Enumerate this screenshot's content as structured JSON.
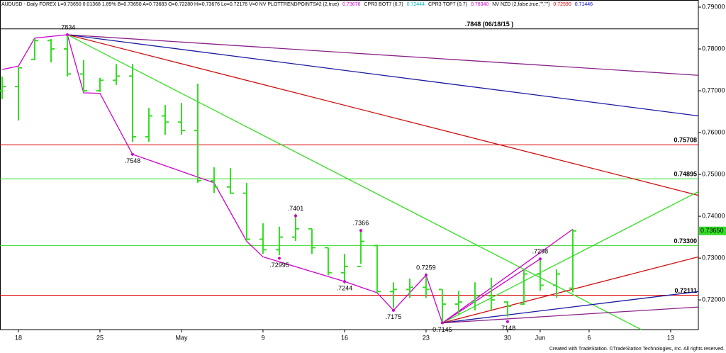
{
  "chart_data": {
    "type": "ohlc",
    "header": [
      {
        "text": "AUDUSD - Daily  FOREX  L=0.73650  0.01368  1.89%  B=0.73650  A=0.73683  O=0.72280  Hi=0.73676  Lo=0.72176  V=0  NV  PLOTTRENDPOINTS#2 (2,true)",
        "color": "#000000"
      },
      {
        "text": "0.73676",
        "color": "#cc00cc"
      },
      {
        "text": "CPR3 BOT7 (0,7)",
        "color": "#000000"
      },
      {
        "text": "0.72444",
        "color": "#00b0c0"
      },
      {
        "text": "CPR3 TOP7 (0,7)",
        "color": "#000000"
      },
      {
        "text": "0.78340",
        "color": "#cc00cc"
      },
      {
        "text": "NV NZD (2,false,true,\"\",\"\")",
        "color": "#000000"
      },
      {
        "text": "0.72590",
        "color": "#dd0000"
      },
      {
        "text": "0.71446",
        "color": "#0000cc"
      }
    ],
    "categories": [
      null,
      "18",
      null,
      null,
      null,
      null,
      "25",
      null,
      null,
      null,
      null,
      "May",
      null,
      null,
      null,
      null,
      "9",
      null,
      null,
      null,
      null,
      "16",
      null,
      null,
      null,
      null,
      "23",
      null,
      null,
      null,
      null,
      "30",
      null,
      "Jun",
      null,
      null,
      "6",
      null,
      null,
      null,
      null,
      "13",
      null
    ],
    "open": [
      0.77,
      0.771,
      0.7775,
      0.782,
      0.78,
      0.774,
      0.77,
      0.7725,
      0.7735,
      0.759,
      0.764,
      0.7625,
      0.7605,
      0.7485,
      0.747,
      0.7455,
      0.7345,
      0.732,
      0.735,
      0.737,
      0.7325,
      0.7265,
      0.728,
      0.733,
      0.722,
      0.7225,
      0.723,
      0.7225,
      0.719,
      0.7195,
      0.721,
      0.7195,
      0.719,
      0.7262,
      0.7235,
      0.7228,
      null,
      null,
      null,
      null,
      null,
      null,
      null
    ],
    "high": [
      0.7734,
      0.7756,
      0.7824,
      0.7824,
      0.7834,
      0.7773,
      0.7731,
      0.7764,
      0.7764,
      0.7659,
      0.7666,
      0.7671,
      0.7717,
      0.7517,
      0.7515,
      0.748,
      0.7383,
      0.7375,
      0.7406,
      0.737,
      0.7325,
      0.731,
      0.7366,
      0.7332,
      0.7242,
      0.7251,
      0.7264,
      0.7225,
      0.7222,
      0.7242,
      0.7253,
      0.7197,
      0.7273,
      0.7298,
      0.7273,
      0.7368,
      null,
      null,
      null,
      null,
      null,
      null,
      null
    ],
    "low": [
      0.768,
      0.7629,
      0.7773,
      0.7768,
      0.7734,
      0.7697,
      0.7697,
      0.7714,
      0.7578,
      0.7578,
      0.7595,
      0.7595,
      0.748,
      0.7456,
      0.7454,
      0.7341,
      0.731,
      0.7307,
      0.7341,
      0.731,
      0.7259,
      0.7239,
      0.7286,
      0.7217,
      0.718,
      0.7205,
      0.7205,
      0.7146,
      0.7163,
      0.7175,
      0.7176,
      0.716,
      0.7188,
      0.7222,
      0.7205,
      0.7218,
      null,
      null,
      null,
      null,
      null,
      null,
      null
    ],
    "close": [
      0.771,
      0.7755,
      0.782,
      0.78,
      0.774,
      0.77,
      0.7725,
      0.7735,
      0.759,
      0.764,
      0.7625,
      0.7605,
      0.7485,
      0.747,
      0.7455,
      0.7345,
      0.732,
      0.735,
      0.737,
      0.7325,
      0.7265,
      0.728,
      0.734,
      0.722,
      0.7225,
      0.723,
      0.7225,
      0.719,
      0.7195,
      0.721,
      0.72,
      0.7185,
      0.7262,
      0.7235,
      0.7262,
      0.7365,
      null,
      null,
      null,
      null,
      null,
      null,
      null
    ],
    "color": "#33dd22",
    "xlim": [
      -0.13,
      42.7
    ],
    "ylim": [
      0.7129,
      0.7917
    ],
    "yticks": [
      {
        "value": 0.79,
        "label": "0.79000"
      },
      {
        "value": 0.78,
        "label": "0.78000"
      },
      {
        "value": 0.77,
        "label": "0.77000"
      },
      {
        "value": 0.76,
        "label": "0.76000"
      },
      {
        "value": 0.75,
        "label": "0.75000"
      },
      {
        "value": 0.74,
        "label": "0.74000"
      },
      {
        "value": 0.73,
        "label": "0.73000"
      },
      {
        "value": 0.72,
        "label": "0.72000"
      }
    ],
    "last": {
      "value": 0.7365,
      "label": "0.73650",
      "color": "#33dd22"
    },
    "horizontal_lines": [
      {
        "value": 0.7848,
        "label": ".7848 (06/18/15 )",
        "color": "#000000"
      },
      {
        "value": 0.75708,
        "label": "0.75708",
        "color": "#dd0000"
      },
      {
        "value": 0.74895,
        "label": "0.74895",
        "color": "#33dd22"
      },
      {
        "value": 0.733,
        "label": "0.73300",
        "color": "#33dd22"
      },
      {
        "value": 0.72111,
        "label": "0.72111",
        "color": "#dd0000"
      }
    ],
    "trend_lines": [
      {
        "from": [
          4,
          0.7834
        ],
        "to": [
          42.7,
          0.7737
        ],
        "color": "#882288"
      },
      {
        "from": [
          4,
          0.7834
        ],
        "to": [
          42.7,
          0.764
        ],
        "color": "#1a1aa0"
      },
      {
        "from": [
          4,
          0.7834
        ],
        "to": [
          42.7,
          0.745
        ],
        "color": "#cc1111"
      },
      {
        "from": [
          4,
          0.7834
        ],
        "to": [
          39.2,
          0.7129
        ],
        "color": "#33dd22"
      },
      {
        "from": [
          27,
          0.7145
        ],
        "to": [
          42.7,
          0.7459
        ],
        "color": "#33dd22"
      },
      {
        "from": [
          27,
          0.7145
        ],
        "to": [
          42.7,
          0.7303
        ],
        "color": "#cc1111"
      },
      {
        "from": [
          27,
          0.7145
        ],
        "to": [
          42.7,
          0.722
        ],
        "color": "#1a1aa0"
      },
      {
        "from": [
          27,
          0.7145
        ],
        "to": [
          42.7,
          0.7183
        ],
        "color": "#882288"
      },
      {
        "from": [
          27,
          0.7145
        ],
        "to": [
          35,
          0.7369
        ],
        "color": "#cc00cc"
      },
      {
        "from": [
          27,
          0.7145
        ],
        "to": [
          33,
          0.7298
        ],
        "color": "#cc00cc"
      }
    ],
    "zigzag": {
      "color": "#cc00cc",
      "x": [
        0,
        1,
        2,
        3,
        4,
        5,
        6,
        8,
        13,
        15,
        16,
        21,
        23,
        24,
        26,
        27
      ],
      "values": [
        0.7751,
        0.7759,
        0.7826,
        0.783,
        0.7834,
        0.7695,
        0.7694,
        0.7548,
        0.748,
        0.734,
        0.7303,
        0.7244,
        0.7217,
        0.7175,
        0.7259,
        0.7145
      ]
    },
    "pivots": [
      {
        "index": 4,
        "value": 0.7834,
        "label": ".7834"
      },
      {
        "index": 8,
        "value": 0.7548,
        "label": ".7548"
      },
      {
        "index": 18,
        "value": 0.7401,
        "label": ".7401"
      },
      {
        "index": 22,
        "value": 0.7366,
        "label": ".7366"
      },
      {
        "index": 17,
        "value": 0.72995,
        "label": ".72995"
      },
      {
        "index": 21,
        "value": 0.7244,
        "label": ".7244"
      },
      {
        "index": 24,
        "value": 0.7175,
        "label": ".7175"
      },
      {
        "index": 26,
        "value": 0.7259,
        "label": "0.7259"
      },
      {
        "index": 27,
        "value": 0.7145,
        "label": "0.7145"
      },
      {
        "index": 31,
        "value": 0.7148,
        "label": ".7148"
      },
      {
        "index": 33,
        "value": 0.7298,
        "label": ".7298"
      }
    ],
    "footer": "Created with TradeStation. ©TradeStation Technologies, Inc. All rights reserved."
  }
}
